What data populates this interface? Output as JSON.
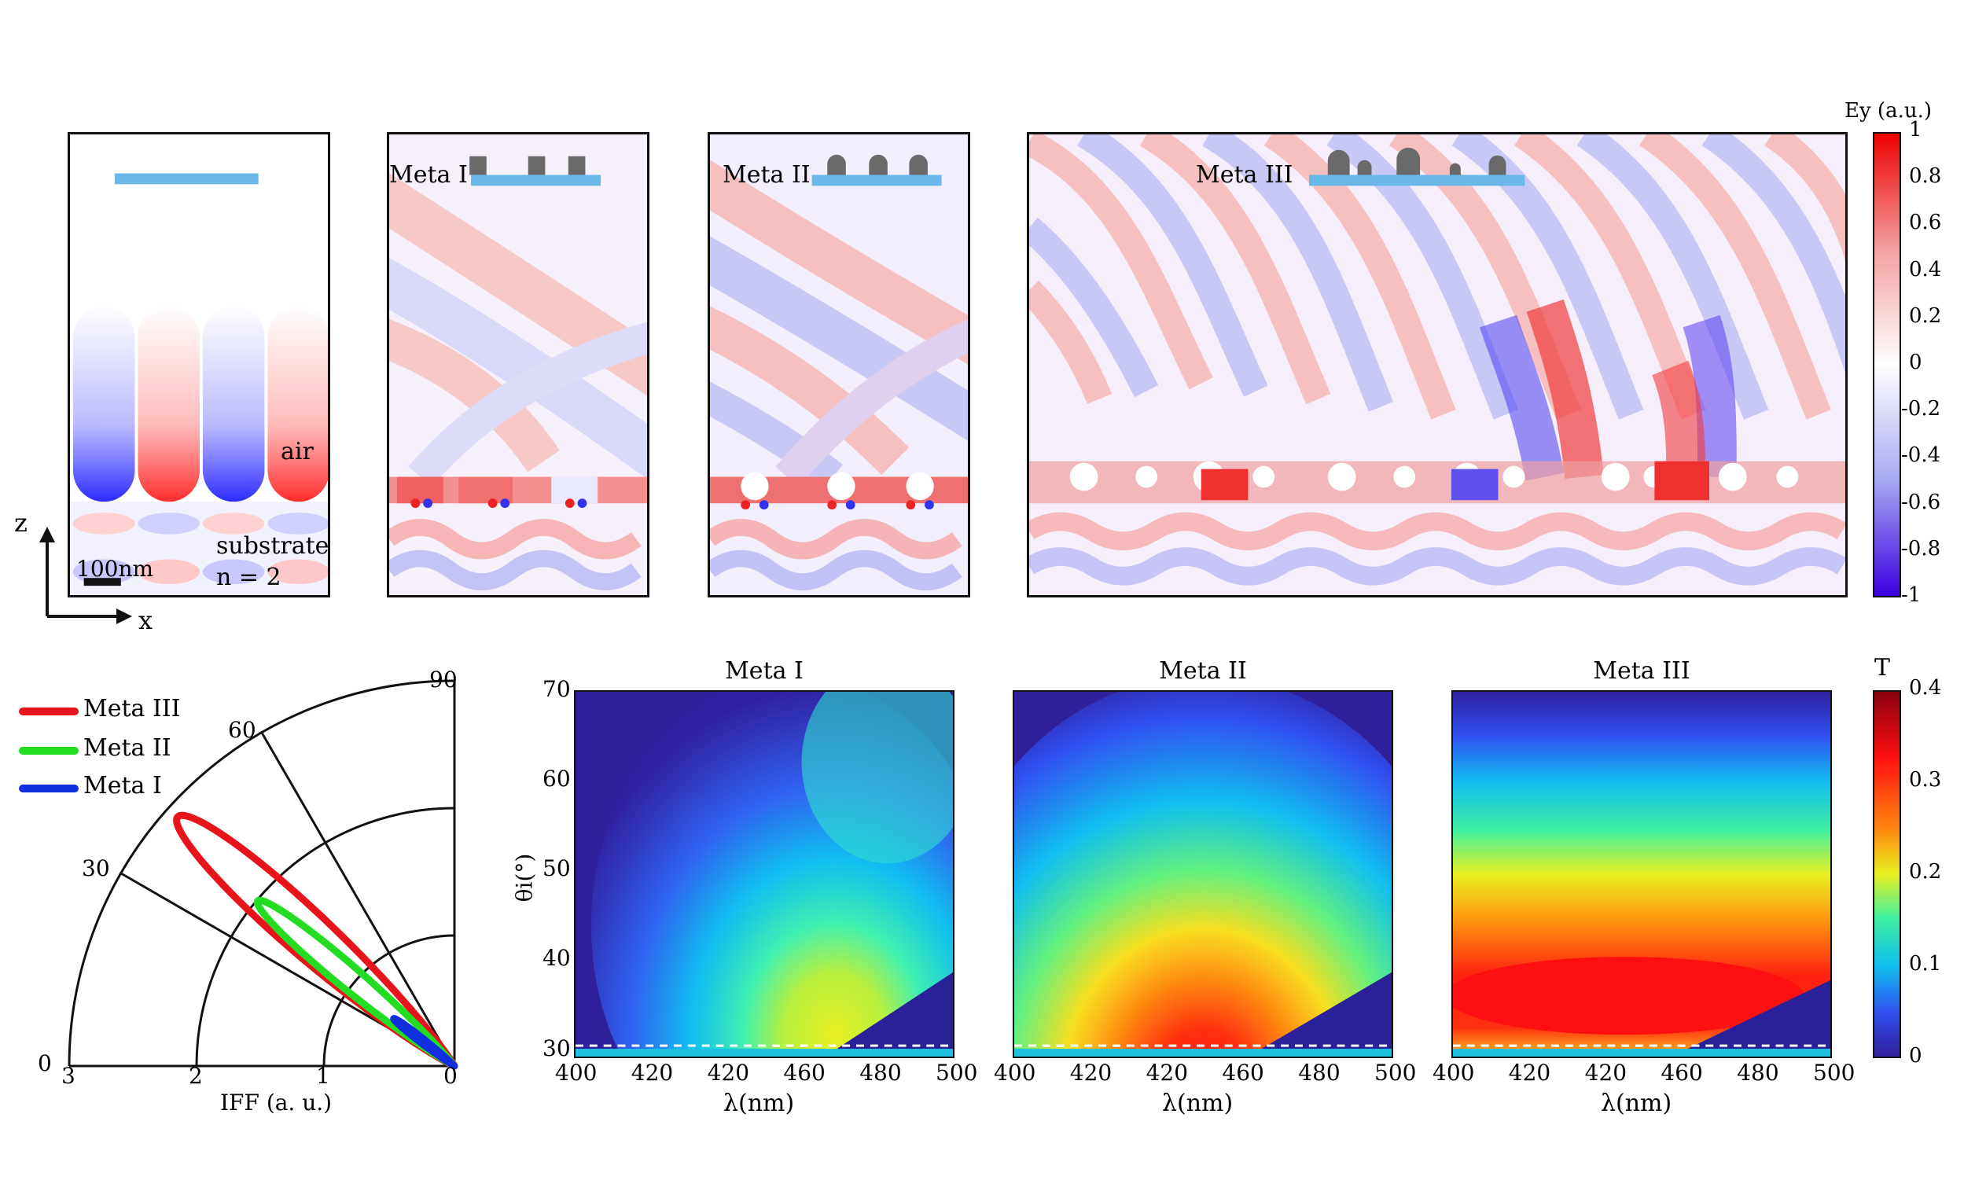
{
  "field_panels": {
    "cbar_title": "Ey (a.u.)",
    "cbar_ticks": [
      "1",
      "0.8",
      "0.6",
      "0.4",
      "0.2",
      "0",
      "-0.2",
      "-0.4",
      "-0.6",
      "-0.8",
      "-1"
    ],
    "panel0": {
      "air": "air",
      "substrate": "substrate",
      "n": "n = 2",
      "scale": "100nm"
    },
    "panel1": {
      "label": "Meta I"
    },
    "panel2": {
      "label": "Meta II"
    },
    "panel3": {
      "label": "Meta III"
    },
    "axes": {
      "z": "z",
      "x": "x"
    }
  },
  "polar": {
    "legend": [
      {
        "name": "Meta III",
        "color": "#e8141c"
      },
      {
        "name": "Meta II",
        "color": "#22dd22"
      },
      {
        "name": "Meta I",
        "color": "#1030e0"
      }
    ],
    "angle_labels": [
      "0",
      "30",
      "60",
      "90"
    ],
    "radial_labels": [
      "3",
      "2",
      "1",
      "0"
    ],
    "xlabel": "IFF (a. u.)"
  },
  "chart_data": [
    {
      "type": "line",
      "subtype": "polar",
      "angle_range": [
        0,
        90
      ],
      "radial_range": [
        0,
        3
      ],
      "xlabel": "IFF (a. u.)",
      "series": [
        {
          "name": "Meta III",
          "color": "#e8141c",
          "peak_angle": 42,
          "peak_value": 2.9
        },
        {
          "name": "Meta II",
          "color": "#22dd22",
          "peak_angle": 40,
          "peak_value": 2.0
        },
        {
          "name": "Meta I",
          "color": "#1030e0",
          "peak_angle": 38,
          "peak_value": 0.6
        }
      ]
    },
    {
      "type": "heatmap",
      "title": "Meta I",
      "xlabel": "λ(nm)",
      "ylabel": "θi(°)",
      "xticks": [
        "400",
        "420",
        "420",
        "460",
        "480",
        "500"
      ],
      "yticks": [
        "70",
        "60",
        "50",
        "40",
        "30"
      ],
      "xlim": [
        400,
        500
      ],
      "ylim": [
        29,
        70
      ],
      "peak": {
        "x": 460,
        "y": 40,
        "value": 0.22
      }
    },
    {
      "type": "heatmap",
      "title": "Meta II",
      "xlabel": "λ(nm)",
      "xticks": [
        "400",
        "420",
        "420",
        "460",
        "480",
        "500"
      ],
      "xlim": [
        400,
        500
      ],
      "ylim": [
        29,
        70
      ],
      "peak": {
        "x": 450,
        "y": 38,
        "value": 0.33
      }
    },
    {
      "type": "heatmap",
      "title": "Meta III",
      "xlabel": "λ(nm)",
      "xticks": [
        "400",
        "420",
        "420",
        "460",
        "480",
        "500"
      ],
      "xlim": [
        400,
        500
      ],
      "ylim": [
        29,
        70
      ],
      "peak": {
        "x": 440,
        "y": 35,
        "value": 0.32
      }
    }
  ],
  "tcbar": {
    "title": "T",
    "ticks": [
      "0.4",
      "0.3",
      "0.2",
      "0.1",
      "0"
    ]
  }
}
